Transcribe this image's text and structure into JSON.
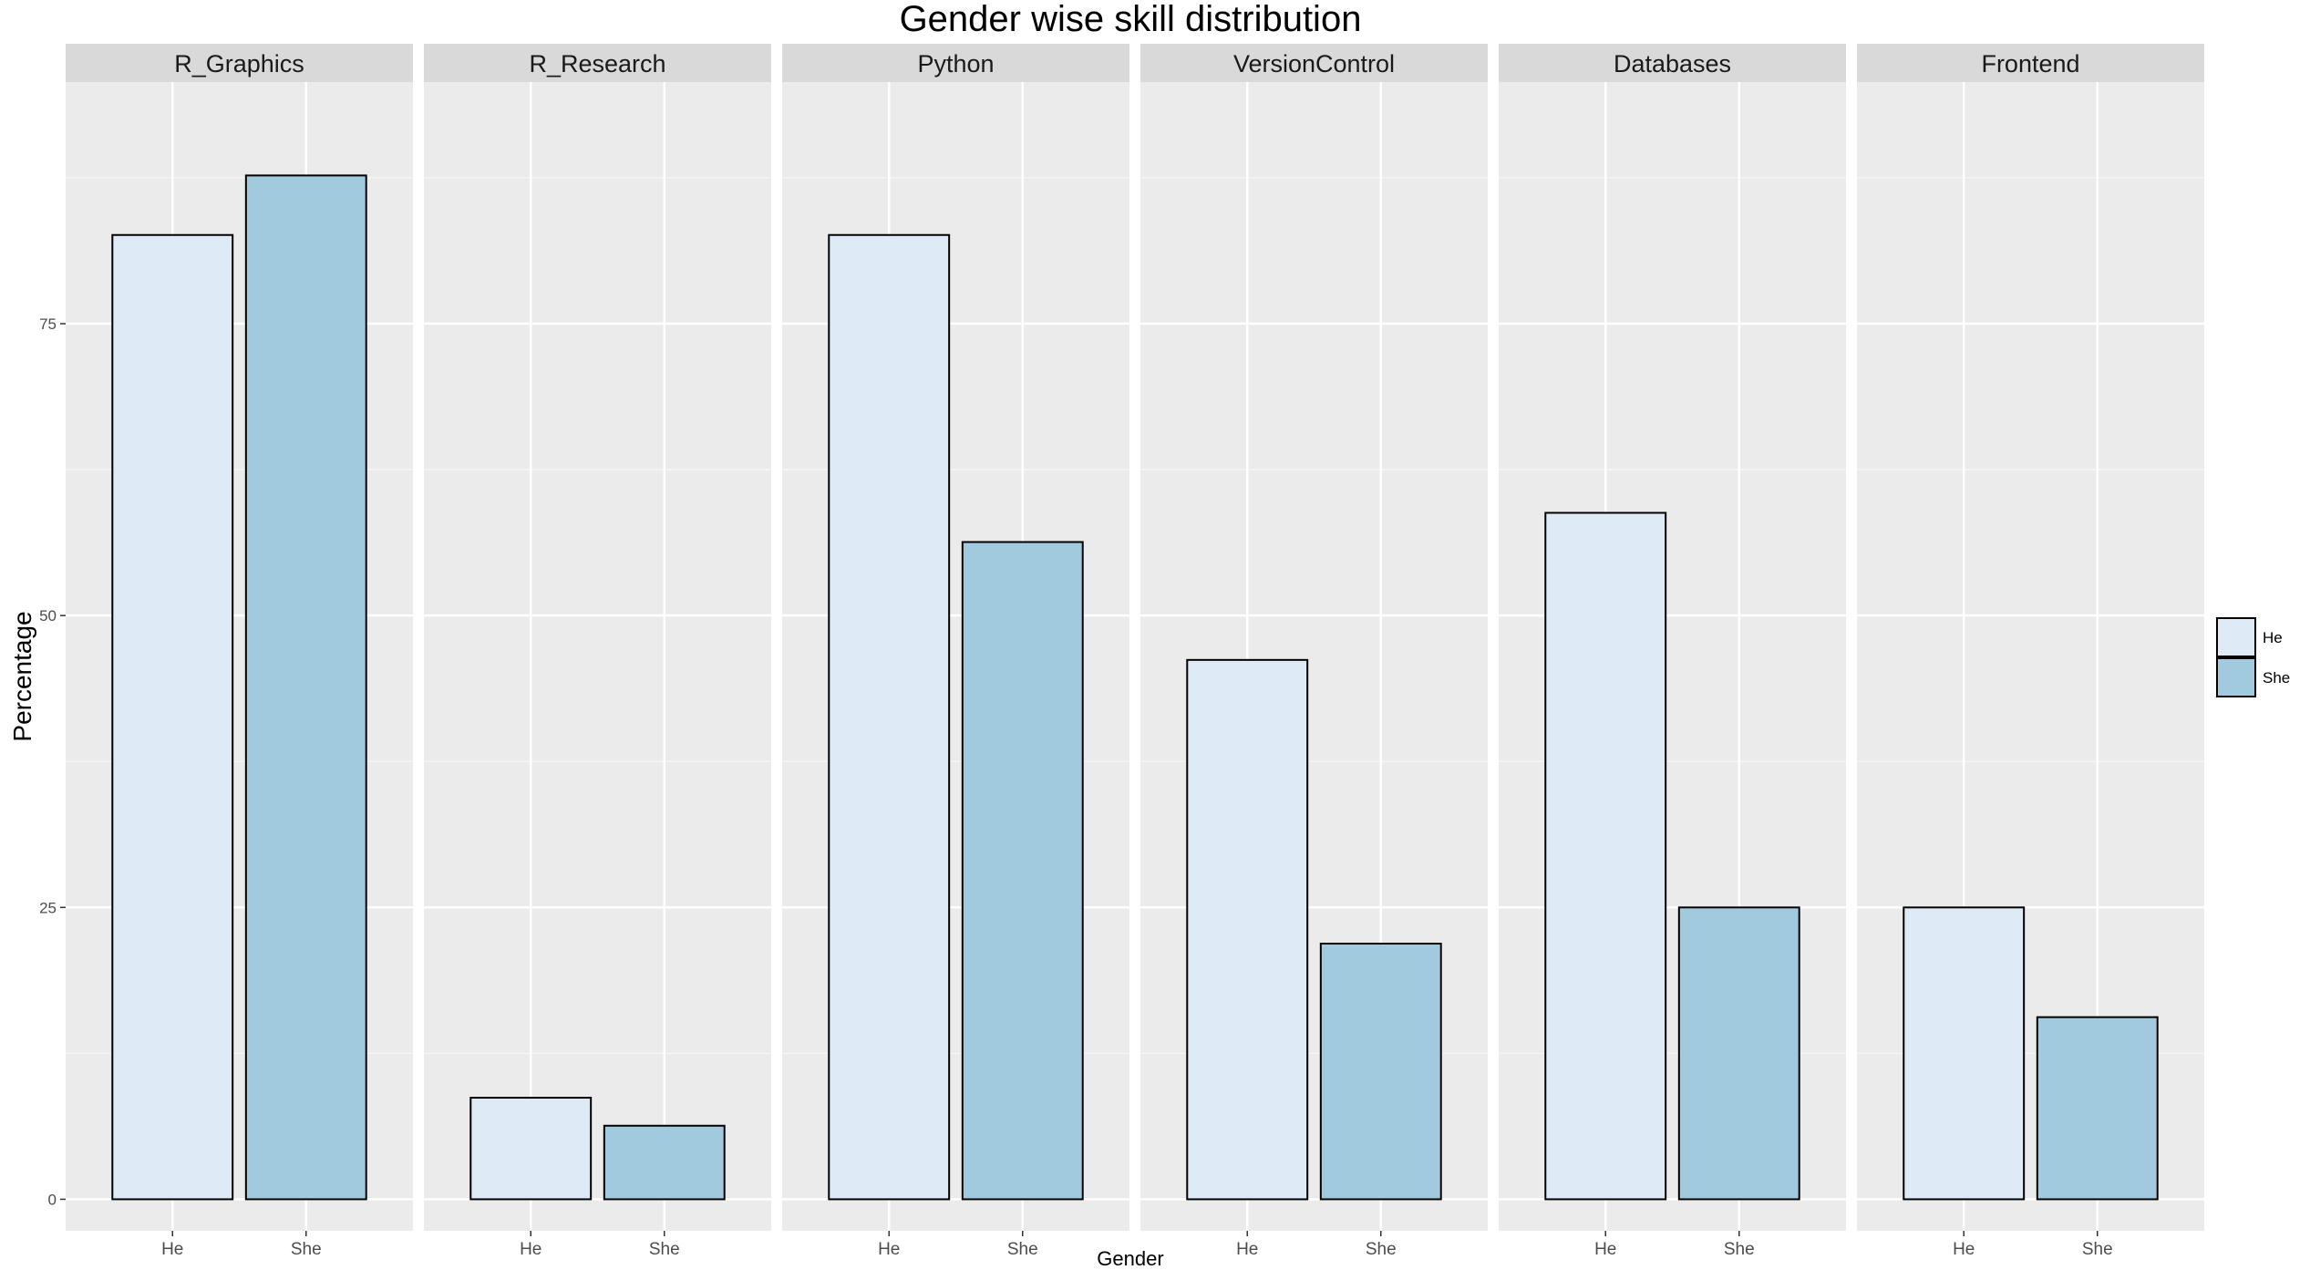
{
  "chart_data": {
    "type": "bar",
    "title": "Gender wise skill distribution",
    "xlabel": "Gender",
    "ylabel": "Percentage",
    "ylim": [
      -2.7,
      95.7
    ],
    "yticks": [
      0,
      25,
      50,
      75
    ],
    "grid": true,
    "legend": {
      "position": "right",
      "title": ""
    },
    "categories": [
      "He",
      "She"
    ],
    "colors": {
      "He": "#deebf7",
      "She": "#a2cadf",
      "panel_bg": "#ebebeb",
      "strip_bg": "#d9d9d9",
      "grid_major": "#ffffff",
      "grid_minor": "#f5f5f5",
      "bar_outline": "#000000"
    },
    "facets": [
      {
        "name": "R_Graphics",
        "values": {
          "He": 82.6,
          "She": 87.7
        }
      },
      {
        "name": "R_Research",
        "values": {
          "He": 8.7,
          "She": 6.3
        }
      },
      {
        "name": "Python",
        "values": {
          "He": 82.6,
          "She": 56.3
        }
      },
      {
        "name": "VersionControl",
        "values": {
          "He": 46.2,
          "She": 21.9
        }
      },
      {
        "name": "Databases",
        "values": {
          "He": 58.8,
          "She": 25.0
        }
      },
      {
        "name": "Frontend",
        "values": {
          "He": 25.0,
          "She": 15.6
        }
      }
    ]
  }
}
